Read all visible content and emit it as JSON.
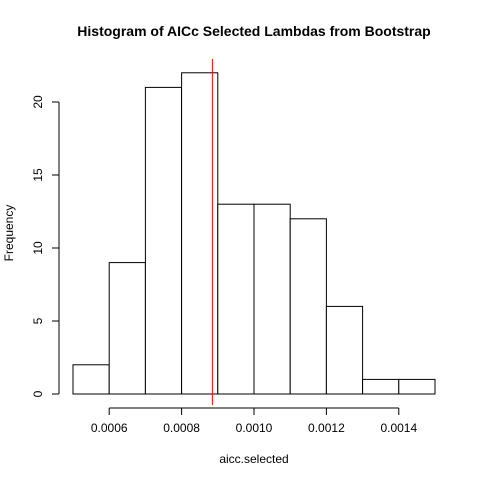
{
  "chart_data": {
    "type": "bar",
    "title": "Histogram of AICc Selected Lambdas from Bootstrap",
    "xlabel": "aicc.selected",
    "ylabel": "Frequency",
    "bins": [
      {
        "start": 0.0005,
        "end": 0.0006,
        "count": 2
      },
      {
        "start": 0.0006,
        "end": 0.0007,
        "count": 9
      },
      {
        "start": 0.0007,
        "end": 0.0008,
        "count": 21
      },
      {
        "start": 0.0008,
        "end": 0.0009,
        "count": 22
      },
      {
        "start": 0.0009,
        "end": 0.001,
        "count": 13
      },
      {
        "start": 0.001,
        "end": 0.0011,
        "count": 13
      },
      {
        "start": 0.0011,
        "end": 0.0012,
        "count": 12
      },
      {
        "start": 0.0012,
        "end": 0.0013,
        "count": 6
      },
      {
        "start": 0.0013,
        "end": 0.0014,
        "count": 1
      },
      {
        "start": 0.0014,
        "end": 0.0015,
        "count": 1
      }
    ],
    "xlim": [
      0.0005,
      0.0015
    ],
    "ylim": [
      0,
      22
    ],
    "x_ticks": [
      0.0006,
      0.0008,
      0.001,
      0.0012,
      0.0014
    ],
    "x_tick_labels": [
      "0.0006",
      "0.0008",
      "0.0010",
      "0.0012",
      "0.0014"
    ],
    "y_ticks": [
      0,
      5,
      10,
      15,
      20
    ],
    "y_tick_labels": [
      "0",
      "5",
      "10",
      "15",
      "20"
    ],
    "reference_line": {
      "x": 0.000885,
      "color": "#ff0000"
    },
    "grid": false,
    "legend": "none"
  }
}
